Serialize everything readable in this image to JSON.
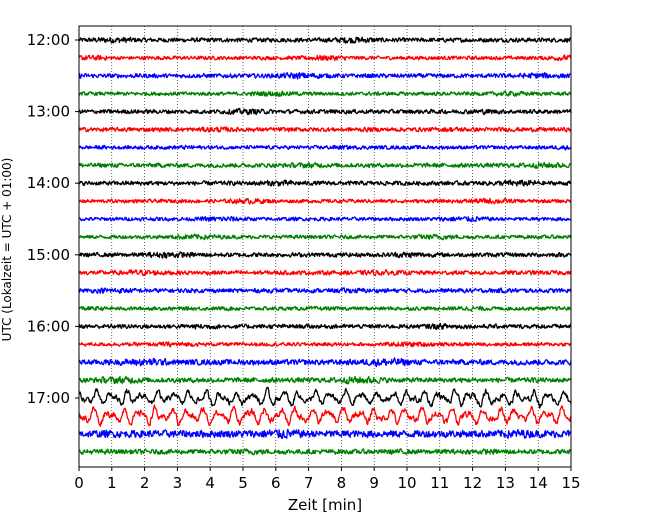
{
  "chart_data": {
    "type": "line",
    "xlabel": "Zeit  [min]",
    "ylabel": "UTC (Lokalzeit = UTC + 01:00)",
    "xlim": [
      0,
      15
    ],
    "x_ticks": [
      0,
      1,
      2,
      3,
      4,
      5,
      6,
      7,
      8,
      9,
      10,
      11,
      12,
      13,
      14,
      15
    ],
    "y_ticks": [
      "12:00",
      "13:00",
      "14:00",
      "15:00",
      "16:00",
      "17:00"
    ],
    "grid": "vertical dotted lines at each minute",
    "trace_colors": [
      "#000000",
      "#ff0000",
      "#0000ff",
      "#008000"
    ],
    "rows": [
      {
        "start": "12:00",
        "color": "#000000",
        "amplitude": 0.35
      },
      {
        "start": "12:15",
        "color": "#ff0000",
        "amplitude": 0.3
      },
      {
        "start": "12:30",
        "color": "#0000ff",
        "amplitude": 0.35
      },
      {
        "start": "12:45",
        "color": "#008000",
        "amplitude": 0.3
      },
      {
        "start": "13:00",
        "color": "#000000",
        "amplitude": 0.35
      },
      {
        "start": "13:15",
        "color": "#ff0000",
        "amplitude": 0.35
      },
      {
        "start": "13:30",
        "color": "#0000ff",
        "amplitude": 0.3
      },
      {
        "start": "13:45",
        "color": "#008000",
        "amplitude": 0.35
      },
      {
        "start": "14:00",
        "color": "#000000",
        "amplitude": 0.35
      },
      {
        "start": "14:15",
        "color": "#ff0000",
        "amplitude": 0.3
      },
      {
        "start": "14:30",
        "color": "#0000ff",
        "amplitude": 0.3
      },
      {
        "start": "14:45",
        "color": "#008000",
        "amplitude": 0.3
      },
      {
        "start": "15:00",
        "color": "#000000",
        "amplitude": 0.35
      },
      {
        "start": "15:15",
        "color": "#ff0000",
        "amplitude": 0.35
      },
      {
        "start": "15:30",
        "color": "#0000ff",
        "amplitude": 0.35
      },
      {
        "start": "15:45",
        "color": "#008000",
        "amplitude": 0.3
      },
      {
        "start": "16:00",
        "color": "#000000",
        "amplitude": 0.35
      },
      {
        "start": "16:15",
        "color": "#ff0000",
        "amplitude": 0.3
      },
      {
        "start": "16:30",
        "color": "#0000ff",
        "amplitude": 0.45
      },
      {
        "start": "16:45",
        "color": "#008000",
        "amplitude": 0.4
      },
      {
        "start": "17:00",
        "color": "#000000",
        "amplitude": 1.1
      },
      {
        "start": "17:15",
        "color": "#ff0000",
        "amplitude": 1.2
      },
      {
        "start": "17:30",
        "color": "#0000ff",
        "amplitude": 0.6
      },
      {
        "start": "17:45",
        "color": "#008000",
        "amplitude": 0.4
      }
    ]
  }
}
